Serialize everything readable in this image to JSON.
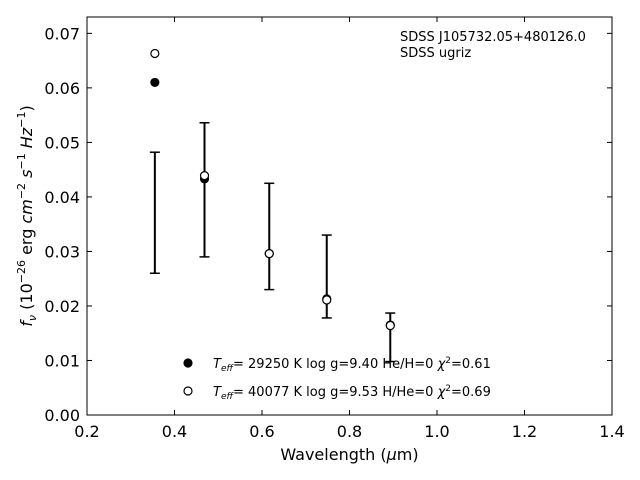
{
  "chart_data": {
    "type": "scatter",
    "title": "",
    "xlabel": "Wavelength (μm)",
    "xlabel_parts": {
      "main": "Wavelength (",
      "mu": "μ",
      "unit": "m)"
    },
    "ylabel": "f_ν (10^-26 erg cm^-2 s^-1 Hz^-1)",
    "xlim": [
      0.2,
      1.4
    ],
    "ylim": [
      0.0,
      0.073
    ],
    "xticks": [
      0.2,
      0.4,
      0.6,
      0.8,
      1.0,
      1.2,
      1.4
    ],
    "xtick_labels": [
      "0.2",
      "0.4",
      "0.6",
      "0.8",
      "1.0",
      "1.2",
      "1.4"
    ],
    "yticks": [
      0.0,
      0.01,
      0.02,
      0.03,
      0.04,
      0.05,
      0.06,
      0.07
    ],
    "ytick_labels": [
      "0.00",
      "0.01",
      "0.02",
      "0.03",
      "0.04",
      "0.05",
      "0.06",
      "0.07"
    ],
    "grid": false,
    "annotation": {
      "line1": "SDSS J105732.05+480126.0",
      "line2": "SDSS ugriz"
    },
    "observed": {
      "x": [
        0.3551,
        0.4686,
        0.6166,
        0.748,
        0.8932
      ],
      "y_low": [
        0.026,
        0.029,
        0.023,
        0.0178,
        0.0098
      ],
      "y_high": [
        0.0482,
        0.0536,
        0.0425,
        0.033,
        0.0187
      ]
    },
    "series": [
      {
        "name": "T_eff= 29250 K  log g=9.40  He/H=0  χ²=0.61",
        "marker": "filled-circle",
        "x": [
          0.3551,
          0.4686,
          0.6166,
          0.748,
          0.8932
        ],
        "y": [
          0.061,
          0.0433,
          0.0296,
          0.0213,
          0.0165
        ]
      },
      {
        "name": "T_eff= 40077 K  log g=9.53  H/He=0  χ²=0.69",
        "marker": "open-circle",
        "x": [
          0.3551,
          0.4686,
          0.6166,
          0.748,
          0.8932
        ],
        "y": [
          0.0663,
          0.0439,
          0.0296,
          0.0211,
          0.0164
        ]
      }
    ],
    "legend": {
      "placement": "lower-center",
      "entries": [
        {
          "teff": "= 29250 K",
          "rest": "log g=9.40  He/H=0",
          "chi": "=0.61"
        },
        {
          "teff": "= 40077 K",
          "rest": "log g=9.53  H/He=0",
          "chi": "=0.69"
        }
      ]
    }
  }
}
